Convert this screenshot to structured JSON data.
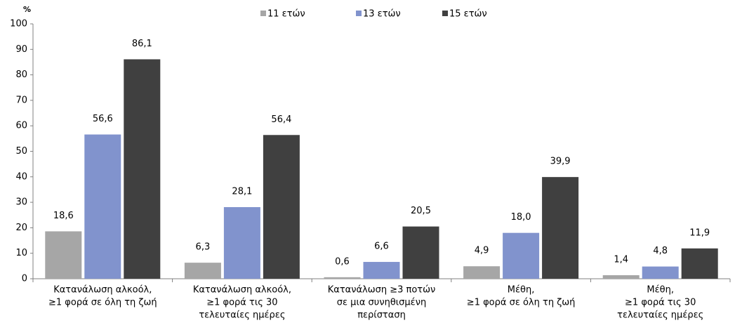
{
  "chart_data": {
    "type": "bar",
    "y_label": "%",
    "categories": [
      [
        "Κατανάλωση αλκοόλ,",
        "≥1 φορά σε όλη τη ζωή"
      ],
      [
        "Κατανάλωση αλκοόλ,",
        "≥1 φορά τις 30",
        "τελευταίες ημέρες"
      ],
      [
        "Κατανάλωση ≥3 ποτών",
        "σε μια συνηθισμένη",
        "περίσταση"
      ],
      [
        "Μέθη,",
        "≥1 φορά σε όλη τη ζωή"
      ],
      [
        "Μέθη,",
        "≥1 φορά τις 30",
        "τελευταίες ημέρες"
      ]
    ],
    "series": [
      {
        "name": "11 ετών",
        "color": "#a6a6a6",
        "values": [
          18.6,
          6.3,
          0.6,
          4.9,
          1.4
        ],
        "value_labels": [
          "18,6",
          "6,3",
          "0,6",
          "4,9",
          "1,4"
        ]
      },
      {
        "name": "13 ετών",
        "color": "#8193cd",
        "values": [
          56.6,
          28.1,
          6.6,
          18.0,
          4.8
        ],
        "value_labels": [
          "56,6",
          "28,1",
          "6,6",
          "18,0",
          "4,8"
        ]
      },
      {
        "name": "15 ετών",
        "color": "#404040",
        "values": [
          86.1,
          56.4,
          20.5,
          39.9,
          11.9
        ],
        "value_labels": [
          "86,1",
          "56,4",
          "20,5",
          "39,9",
          "11,9"
        ]
      }
    ],
    "ylim": [
      0,
      100
    ],
    "yticks": [
      0,
      10,
      20,
      30,
      40,
      50,
      60,
      70,
      80,
      90,
      100
    ],
    "grid": false,
    "legend": "top"
  }
}
